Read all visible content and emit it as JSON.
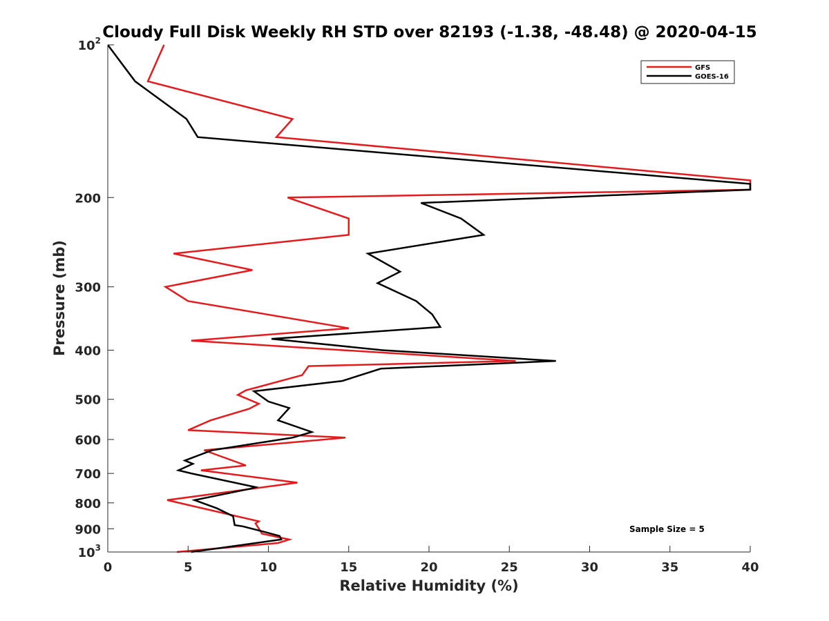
{
  "chart_data": {
    "type": "line",
    "title": "Cloudy Full Disk Weekly RH STD over 82193 (-1.38, -48.48) @ 2020-04-15",
    "xlabel": "Relative Humidity (%)",
    "ylabel": "Pressure (mb)",
    "xlim": [
      0,
      40
    ],
    "ylim": [
      100,
      1000
    ],
    "yscale": "log",
    "y_reversed": true,
    "x_ticks": [
      0,
      5,
      10,
      15,
      20,
      25,
      30,
      35,
      40
    ],
    "x_tick_labels": [
      "0",
      "5",
      "10",
      "15",
      "20",
      "25",
      "30",
      "35",
      "40"
    ],
    "y_ticks": [
      {
        "value": 100,
        "label": "10",
        "exp": "2"
      },
      {
        "value": 200,
        "label": "200",
        "exp": ""
      },
      {
        "value": 300,
        "label": "300",
        "exp": ""
      },
      {
        "value": 400,
        "label": "400",
        "exp": ""
      },
      {
        "value": 500,
        "label": "500",
        "exp": ""
      },
      {
        "value": 600,
        "label": "600",
        "exp": ""
      },
      {
        "value": 700,
        "label": "700",
        "exp": ""
      },
      {
        "value": 800,
        "label": "800",
        "exp": ""
      },
      {
        "value": 900,
        "label": "900",
        "exp": ""
      },
      {
        "value": 1000,
        "label": "10",
        "exp": "3"
      }
    ],
    "grid": false,
    "legend_position": "top-right",
    "annotation": "Sample Size = 5",
    "series": [
      {
        "name": "GFS",
        "color": "#e41a1c",
        "points": [
          [
            3.5,
            100
          ],
          [
            2.5,
            118
          ],
          [
            11.5,
            140
          ],
          [
            10.5,
            152
          ],
          [
            40,
            185
          ],
          [
            40,
            193
          ],
          [
            11.2,
            200
          ],
          [
            15.0,
            220
          ],
          [
            15.0,
            237
          ],
          [
            4.1,
            258
          ],
          [
            9.0,
            278
          ],
          [
            3.6,
            300
          ],
          [
            5.0,
            320
          ],
          [
            15.0,
            362
          ],
          [
            5.2,
            383
          ],
          [
            25.4,
            420
          ],
          [
            12.5,
            430
          ],
          [
            12.1,
            448
          ],
          [
            8.6,
            480
          ],
          [
            8.1,
            490
          ],
          [
            9.4,
            510
          ],
          [
            8.8,
            522
          ],
          [
            6.4,
            550
          ],
          [
            5.0,
            575
          ],
          [
            14.8,
            595
          ],
          [
            6.0,
            630
          ],
          [
            8.6,
            675
          ],
          [
            5.8,
            690
          ],
          [
            11.8,
            730
          ],
          [
            3.7,
            790
          ],
          [
            9.4,
            870
          ],
          [
            9.2,
            878
          ],
          [
            9.6,
            920
          ],
          [
            11.3,
            945
          ],
          [
            10.6,
            960
          ],
          [
            4.3,
            1000
          ]
        ]
      },
      {
        "name": "GOES-16",
        "color": "#000000",
        "points": [
          [
            0.0,
            100
          ],
          [
            1.7,
            118
          ],
          [
            4.9,
            140
          ],
          [
            5.6,
            152
          ],
          [
            40,
            188
          ],
          [
            40,
            193
          ],
          [
            19.5,
            205
          ],
          [
            22.0,
            220
          ],
          [
            23.4,
            237
          ],
          [
            16.2,
            258
          ],
          [
            18.2,
            280
          ],
          [
            16.8,
            295
          ],
          [
            19.2,
            320
          ],
          [
            20.2,
            340
          ],
          [
            20.7,
            360
          ],
          [
            10.2,
            380
          ],
          [
            17.1,
            400
          ],
          [
            27.9,
            420
          ],
          [
            17.0,
            435
          ],
          [
            14.6,
            460
          ],
          [
            9.1,
            482
          ],
          [
            10.0,
            505
          ],
          [
            11.3,
            520
          ],
          [
            10.6,
            550
          ],
          [
            12.7,
            580
          ],
          [
            11.5,
            595
          ],
          [
            6.5,
            630
          ],
          [
            4.8,
            660
          ],
          [
            5.3,
            670
          ],
          [
            4.4,
            690
          ],
          [
            5.2,
            700
          ],
          [
            9.2,
            745
          ],
          [
            8.9,
            750
          ],
          [
            5.4,
            790
          ],
          [
            6.8,
            820
          ],
          [
            7.8,
            850
          ],
          [
            7.9,
            885
          ],
          [
            8.4,
            890
          ],
          [
            9.6,
            910
          ],
          [
            10.7,
            930
          ],
          [
            10.8,
            945
          ],
          [
            5.2,
            1000
          ]
        ]
      }
    ]
  }
}
